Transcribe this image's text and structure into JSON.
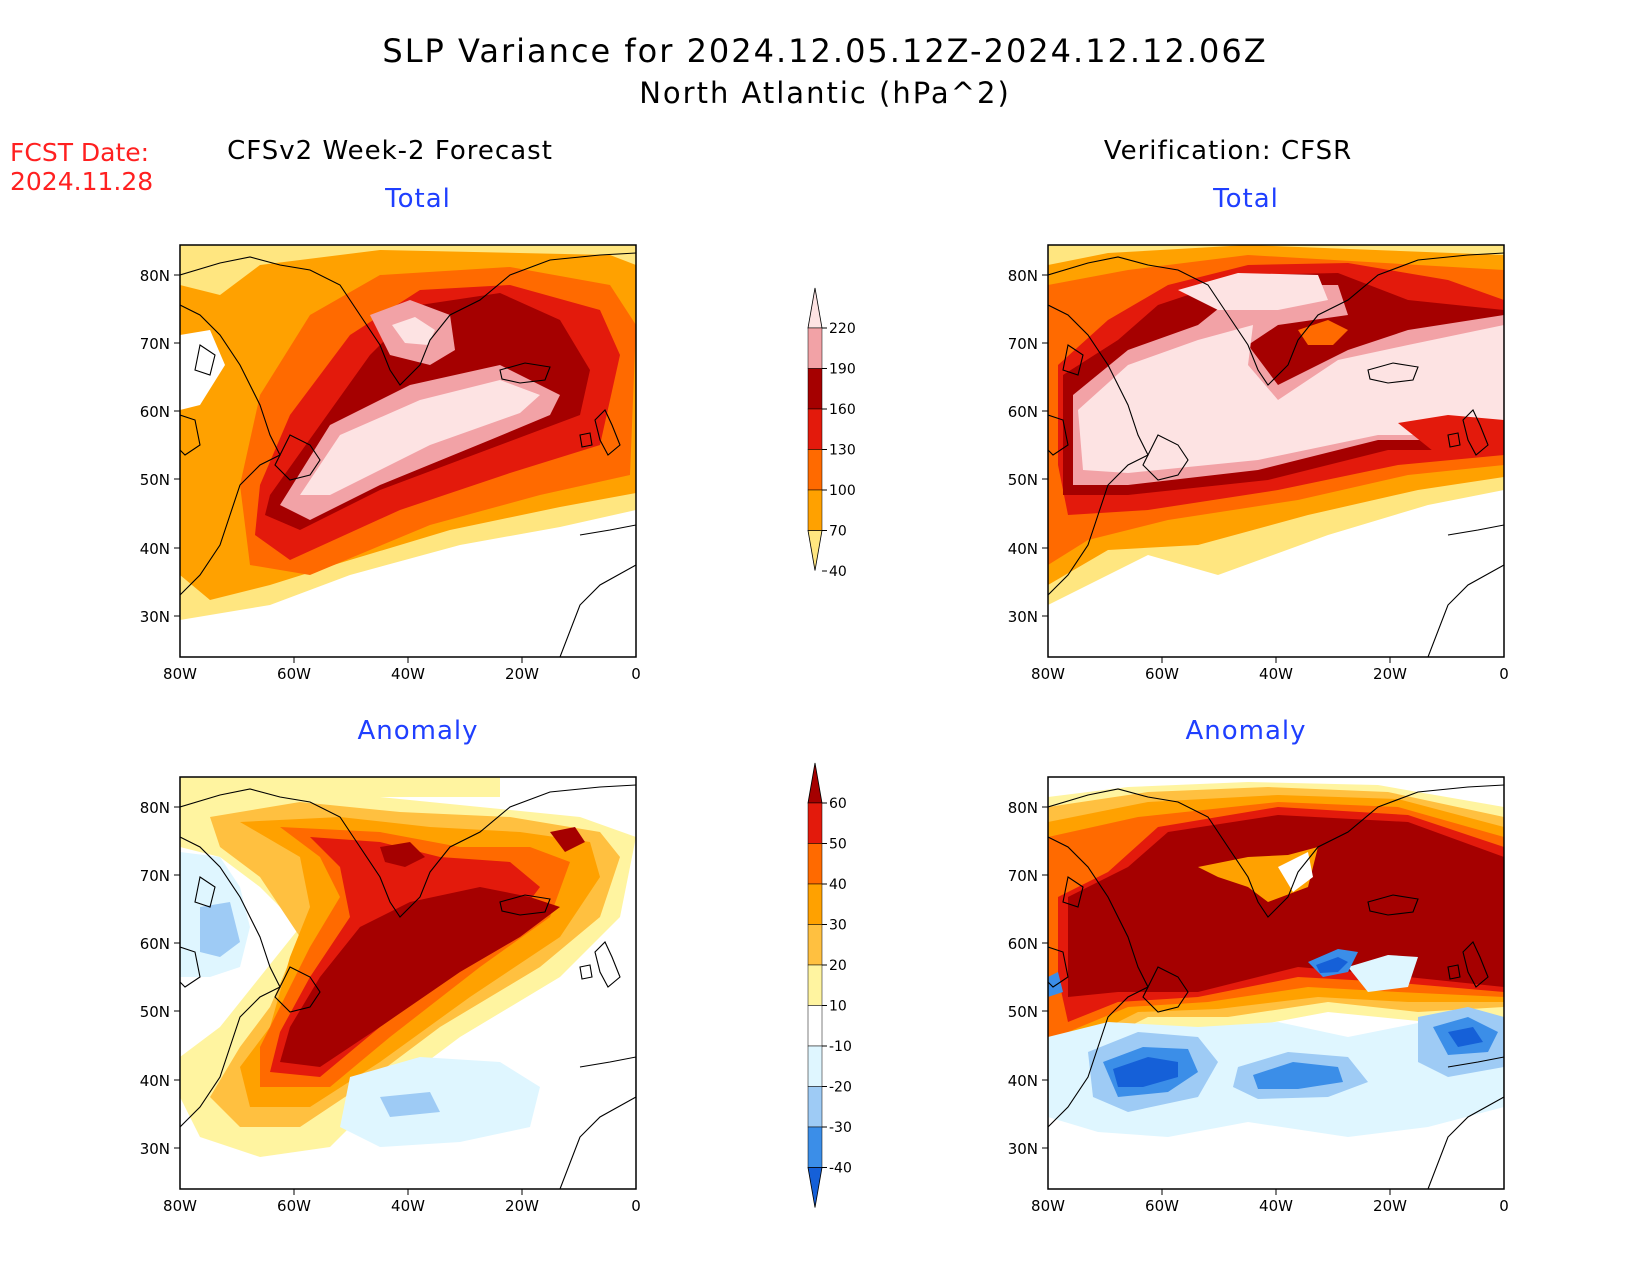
{
  "title": "SLP Variance for 2024.12.05.12Z-2024.12.12.06Z",
  "subtitle": "North Atlantic (hPa^2)",
  "fcst_date_label": "FCST Date:",
  "fcst_date_value": "2024.11.28",
  "columns": {
    "left": "CFSv2 Week-2 Forecast",
    "right": "Verification: CFSR"
  },
  "rows": {
    "top": "Total",
    "bottom": "Anomaly"
  },
  "map_axes": {
    "lon_ticks": [
      "80W",
      "60W",
      "40W",
      "20W",
      "0"
    ],
    "lat_ticks": [
      "80N",
      "70N",
      "60N",
      "50N",
      "40N",
      "30N"
    ],
    "lon_range": [
      -80,
      0
    ],
    "lat_range": [
      25,
      85
    ]
  },
  "colorbars": {
    "total": {
      "levels": [
        "220",
        "190",
        "160",
        "130",
        "100",
        "70",
        "40"
      ],
      "colors": [
        "#fde3e3",
        "#f2a2a6",
        "#a50000",
        "#e31a0c",
        "#ff6a00",
        "#ffa100",
        "#ffe680"
      ]
    },
    "anomaly": {
      "levels": [
        "60",
        "50",
        "40",
        "30",
        "20",
        "10",
        "-10",
        "-20",
        "-30",
        "-40"
      ],
      "colors": [
        "#a50000",
        "#e31a0c",
        "#ff6a00",
        "#ffa100",
        "#ffc040",
        "#fff4a0",
        "#ffffff",
        "#dff6ff",
        "#9ecbf5",
        "#3b8ee8",
        "#1560d8"
      ]
    }
  },
  "fields": {
    "total_fcst": [
      {
        "level": "40-70",
        "color": "#ffe680"
      },
      {
        "level": "70-100",
        "color": "#ffa100"
      },
      {
        "level": "100-130",
        "color": "#ff6a00"
      },
      {
        "level": "130-160",
        "color": "#e31a0c"
      },
      {
        "level": "160-190",
        "color": "#a50000"
      },
      {
        "level": "190-220",
        "color": "#f2a2a6"
      },
      {
        "level": ">220",
        "color": "#fde3e3"
      }
    ],
    "anom_colors": {
      "pos": [
        "#fff4a0",
        "#ffc040",
        "#ffa100",
        "#ff6a00",
        "#e31a0c",
        "#a50000"
      ],
      "neg": [
        "#dff6ff",
        "#9ecbf5",
        "#3b8ee8",
        "#1560d8"
      ]
    }
  }
}
